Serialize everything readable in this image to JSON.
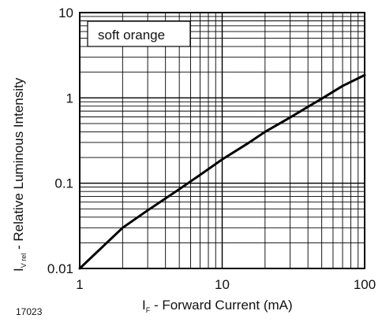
{
  "figure_number": "17023",
  "chart_data": {
    "type": "line",
    "x_scale": "log",
    "y_scale": "log",
    "xlim": [
      1,
      100
    ],
    "ylim": [
      0.01,
      10
    ],
    "grid": true,
    "x_ticks": [
      "1",
      "10",
      "100"
    ],
    "y_ticks": [
      "10",
      "1",
      "0.1",
      "0.01"
    ],
    "xlabel": {
      "main": "I",
      "sub": "F",
      "rest": " - Forward Current (mA)"
    },
    "ylabel": {
      "main": "I",
      "sub": "V rel",
      "rest": " - Relative Luminous Intensity"
    },
    "legend": {
      "text": "soft orange",
      "placement": "top-left"
    },
    "series": [
      {
        "name": "soft orange",
        "color": "#000000",
        "x": [
          1,
          2,
          3,
          5,
          7,
          10,
          15,
          20,
          30,
          50,
          70,
          100
        ],
        "y": [
          0.01,
          0.03,
          0.048,
          0.085,
          0.125,
          0.19,
          0.29,
          0.4,
          0.59,
          0.98,
          1.38,
          1.85
        ]
      }
    ]
  }
}
